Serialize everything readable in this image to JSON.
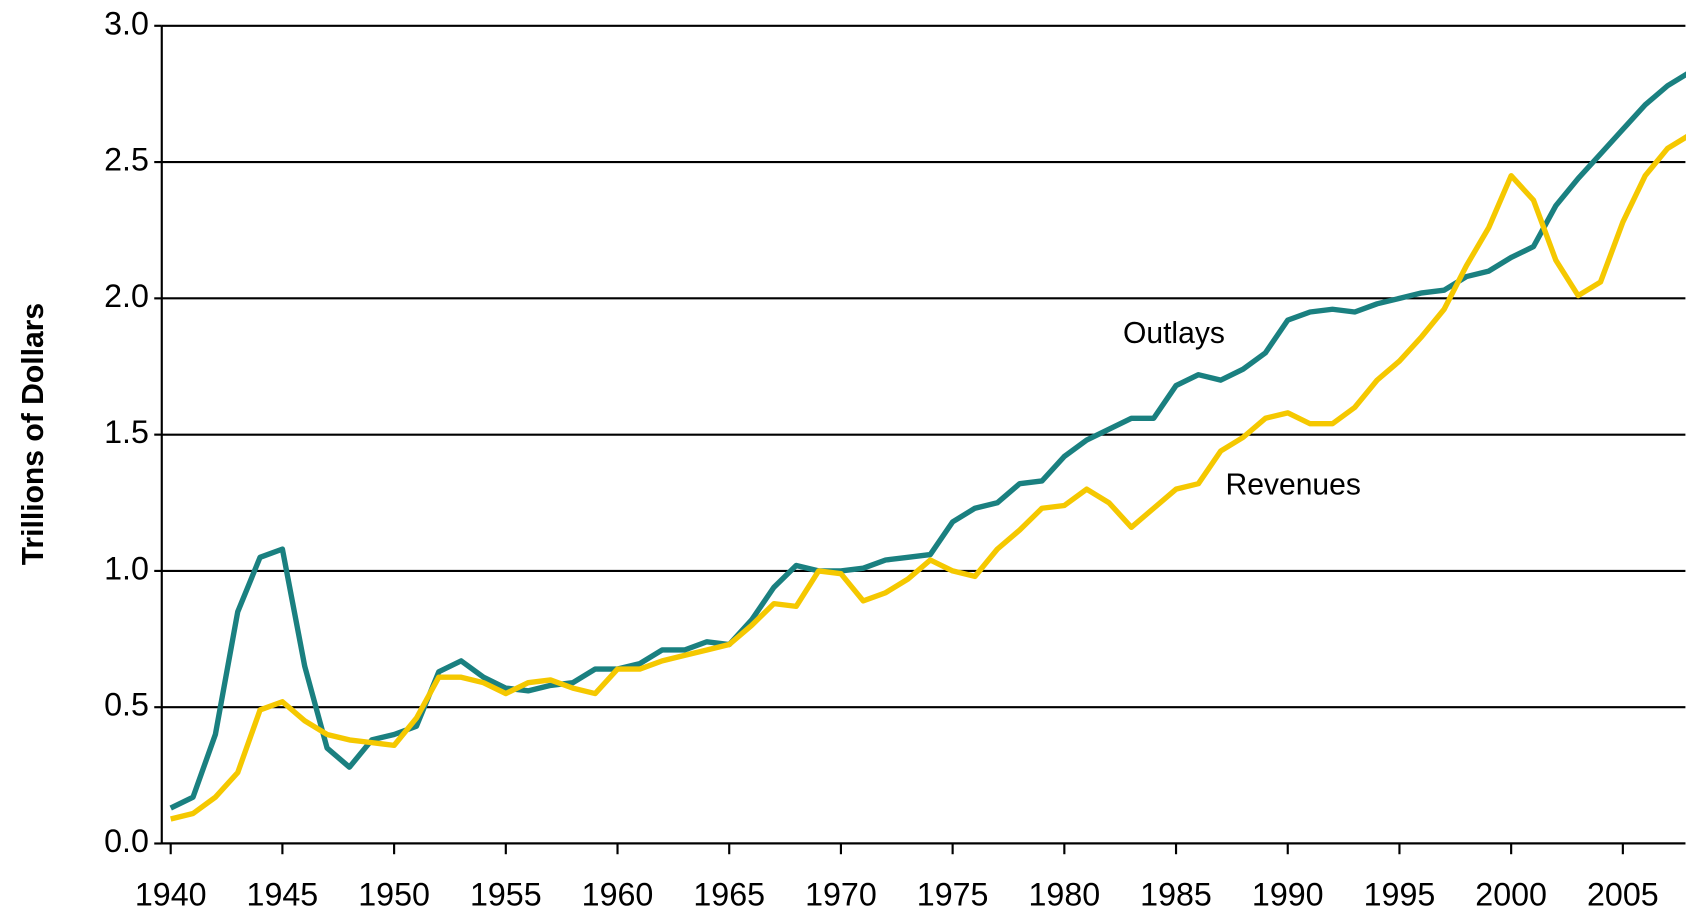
{
  "chart_data": {
    "type": "line",
    "y_label": "Trillions of Dollars",
    "x": [
      1940,
      1941,
      1942,
      1943,
      1944,
      1945,
      1946,
      1947,
      1948,
      1949,
      1950,
      1951,
      1952,
      1953,
      1954,
      1955,
      1956,
      1957,
      1958,
      1959,
      1960,
      1961,
      1962,
      1963,
      1964,
      1965,
      1966,
      1967,
      1968,
      1969,
      1970,
      1971,
      1972,
      1973,
      1974,
      1975,
      1976,
      1977,
      1978,
      1979,
      1980,
      1981,
      1982,
      1983,
      1984,
      1985,
      1986,
      1987,
      1988,
      1989,
      1990,
      1991,
      1992,
      1993,
      1994,
      1995,
      1996,
      1997,
      1998,
      1999,
      2000,
      2001,
      2002,
      2003,
      2004,
      2005,
      2006,
      2007,
      2008
    ],
    "series": [
      {
        "name": "Outlays",
        "color": "#1a8080",
        "values": [
          0.13,
          0.17,
          0.4,
          0.85,
          1.05,
          1.08,
          0.65,
          0.35,
          0.28,
          0.38,
          0.4,
          0.43,
          0.63,
          0.67,
          0.61,
          0.57,
          0.56,
          0.58,
          0.59,
          0.64,
          0.64,
          0.66,
          0.71,
          0.71,
          0.74,
          0.73,
          0.82,
          0.94,
          1.02,
          1.0,
          1.0,
          1.01,
          1.04,
          1.05,
          1.06,
          1.18,
          1.23,
          1.25,
          1.32,
          1.33,
          1.42,
          1.48,
          1.52,
          1.56,
          1.56,
          1.68,
          1.72,
          1.7,
          1.74,
          1.8,
          1.92,
          1.95,
          1.96,
          1.95,
          1.98,
          2.0,
          2.02,
          2.03,
          2.08,
          2.1,
          2.15,
          2.19,
          2.34,
          2.44,
          2.53,
          2.62,
          2.71,
          2.78,
          2.83
        ]
      },
      {
        "name": "Revenues",
        "color": "#f5c800",
        "values": [
          0.09,
          0.11,
          0.17,
          0.26,
          0.49,
          0.52,
          0.45,
          0.4,
          0.38,
          0.37,
          0.36,
          0.46,
          0.61,
          0.61,
          0.59,
          0.55,
          0.59,
          0.6,
          0.57,
          0.55,
          0.64,
          0.64,
          0.67,
          0.69,
          0.71,
          0.73,
          0.8,
          0.88,
          0.87,
          1.0,
          0.99,
          0.89,
          0.92,
          0.97,
          1.04,
          1.0,
          0.98,
          1.08,
          1.15,
          1.23,
          1.24,
          1.3,
          1.25,
          1.16,
          1.23,
          1.3,
          1.32,
          1.44,
          1.49,
          1.56,
          1.58,
          1.54,
          1.54,
          1.6,
          1.7,
          1.77,
          1.86,
          1.96,
          2.12,
          2.26,
          2.45,
          2.36,
          2.14,
          2.01,
          2.06,
          2.28,
          2.45,
          2.55,
          2.6
        ]
      }
    ],
    "xlim": [
      1939.6,
      2007.8
    ],
    "xticks": [
      1940,
      1945,
      1950,
      1955,
      1960,
      1965,
      1970,
      1975,
      1980,
      1985,
      1990,
      1995,
      2000,
      2005
    ],
    "ylim": [
      0,
      3
    ],
    "yticks": [
      {
        "value": 0,
        "label": "0.0"
      },
      0.5,
      {
        "value": 1,
        "label": "1.0"
      },
      1.5,
      {
        "value": 2,
        "label": "2.0"
      },
      2.5,
      {
        "value": 3,
        "label": "3.0"
      }
    ],
    "grid": true
  }
}
